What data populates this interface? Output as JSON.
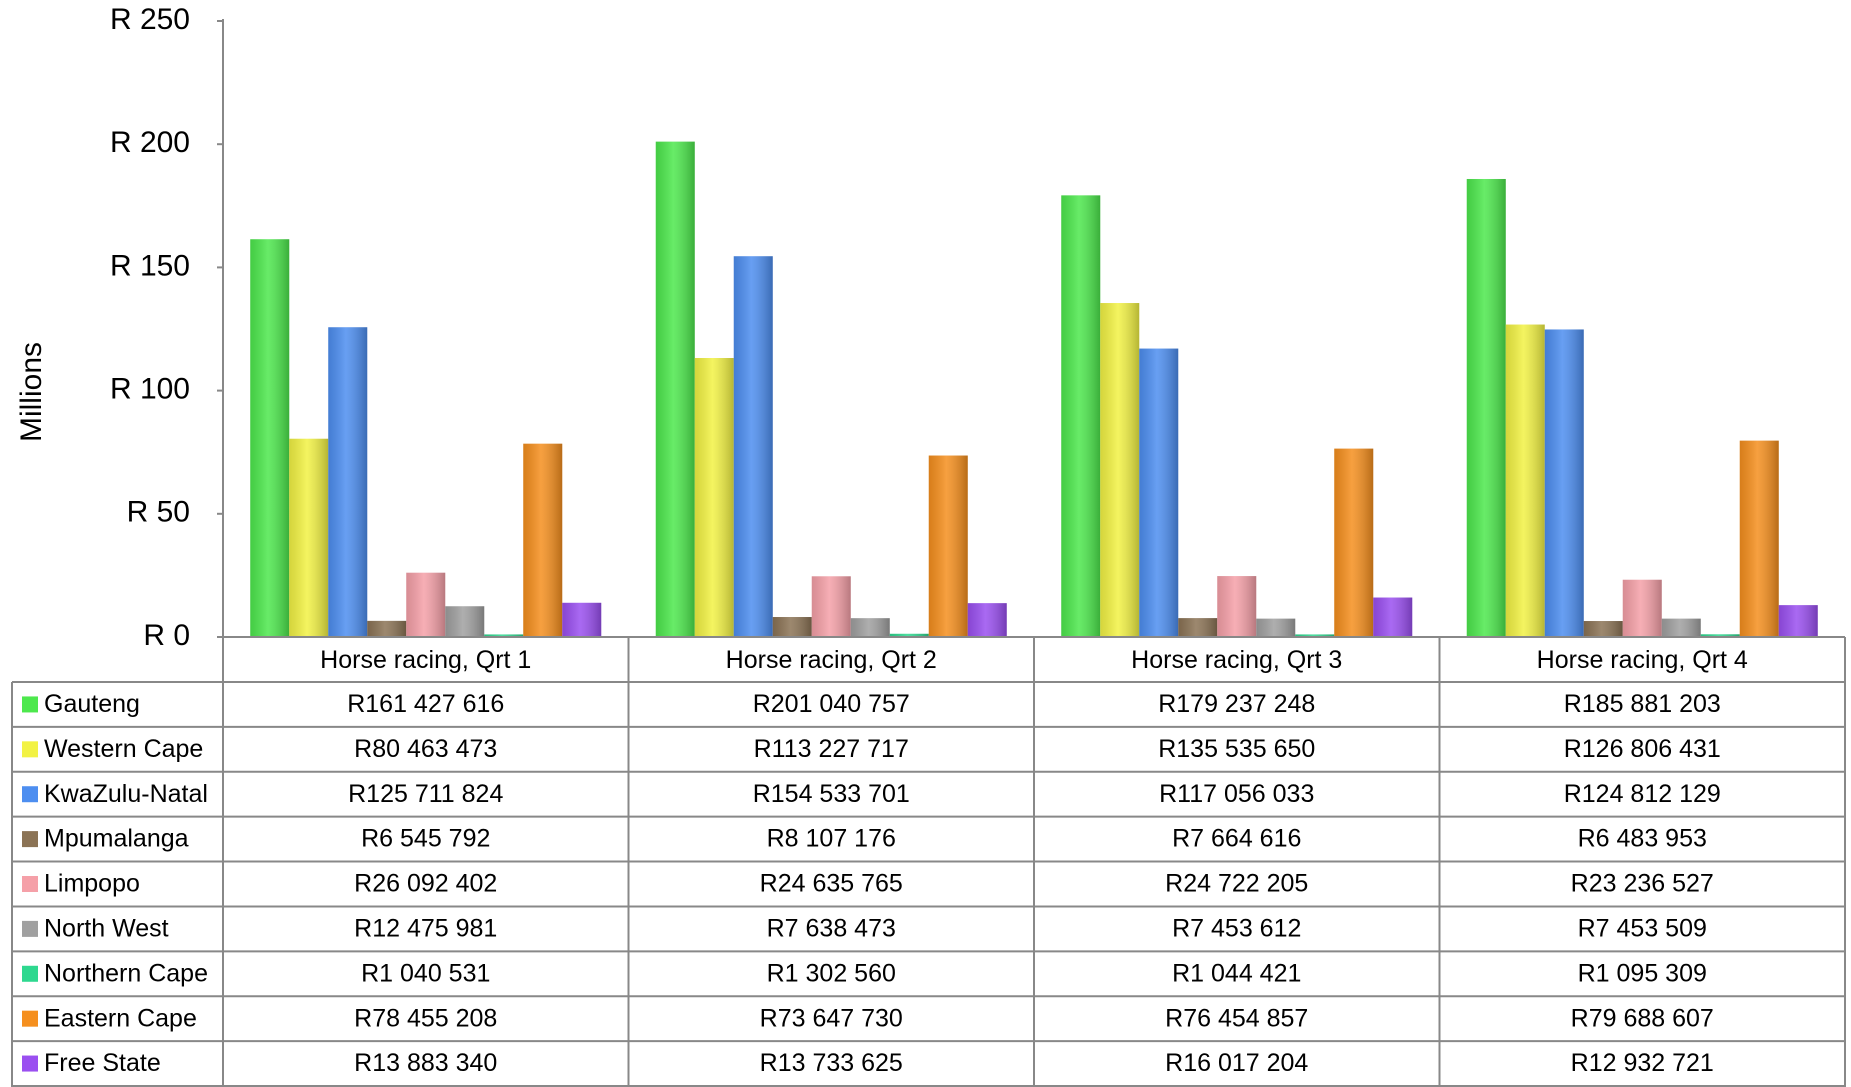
{
  "chart_data": {
    "type": "bar",
    "ylabel": "Millions",
    "categories": [
      "Horse racing, Qrt 1",
      "Horse racing, Qrt 2",
      "Horse racing, Qrt 3",
      "Horse racing, Qrt 4"
    ],
    "ylim": [
      0,
      250
    ],
    "yticks": [
      {
        "value": 0,
        "label": "R 0"
      },
      {
        "value": 50,
        "label": "R 50"
      },
      {
        "value": 100,
        "label": "R 100"
      },
      {
        "value": 150,
        "label": "R 150"
      },
      {
        "value": 200,
        "label": "R 200"
      },
      {
        "value": 250,
        "label": "R 250"
      }
    ],
    "series": [
      {
        "name": "Gauteng",
        "color": "#4de84d",
        "values": [
          161.427616,
          201.040757,
          179.237248,
          185.881203
        ],
        "value_labels": [
          "R161 427 616",
          "R201 040 757",
          "R179 237 248",
          "R185 881 203"
        ]
      },
      {
        "name": "Western Cape",
        "color": "#f2f244",
        "values": [
          80.463473,
          113.227717,
          135.53565,
          126.806431
        ],
        "value_labels": [
          "R80 463 473",
          "R113 227 717",
          "R135 535 650",
          "R126 806 431"
        ]
      },
      {
        "name": "KwaZulu-Natal",
        "color": "#4d8ef0",
        "values": [
          125.711824,
          154.533701,
          117.056033,
          124.812129
        ],
        "value_labels": [
          "R125 711 824",
          "R154 533 701",
          "R117 056 033",
          "R124 812 129"
        ]
      },
      {
        "name": "Mpumalanga",
        "color": "#8b7355",
        "values": [
          6.545792,
          8.107176,
          7.664616,
          6.483953
        ],
        "value_labels": [
          "R6 545 792",
          "R8 107 176",
          "R7 664 616",
          "R6 483 953"
        ]
      },
      {
        "name": "Limpopo",
        "color": "#f5a0a8",
        "values": [
          26.092402,
          24.635765,
          24.722205,
          23.236527
        ],
        "value_labels": [
          "R26 092 402",
          "R24 635 765",
          "R24 722 205",
          "R23 236 527"
        ]
      },
      {
        "name": "North West",
        "color": "#a0a0a0",
        "values": [
          12.475981,
          7.638473,
          7.453612,
          7.453509
        ],
        "value_labels": [
          "R12 475 981",
          "R7 638 473",
          "R7 453 612",
          "R7 453 509"
        ]
      },
      {
        "name": "Northern Cape",
        "color": "#2ed88f",
        "values": [
          1.040531,
          1.30256,
          1.044421,
          1.095309
        ],
        "value_labels": [
          "R1 040 531",
          "R1 302 560",
          "R1 044 421",
          "R1 095 309"
        ]
      },
      {
        "name": "Eastern Cape",
        "color": "#f58f1e",
        "values": [
          78.455208,
          73.64773,
          76.454857,
          79.688607
        ],
        "value_labels": [
          "R78 455 208",
          "R73 647 730",
          "R76 454 857",
          "R79 688 607"
        ]
      },
      {
        "name": "Free State",
        "color": "#9a4ff0",
        "values": [
          13.88334,
          13.733625,
          16.017204,
          12.932721
        ],
        "value_labels": [
          "R13 883 340",
          "R13 733 625",
          "R16 017 204",
          "R12 932 721"
        ]
      }
    ]
  }
}
